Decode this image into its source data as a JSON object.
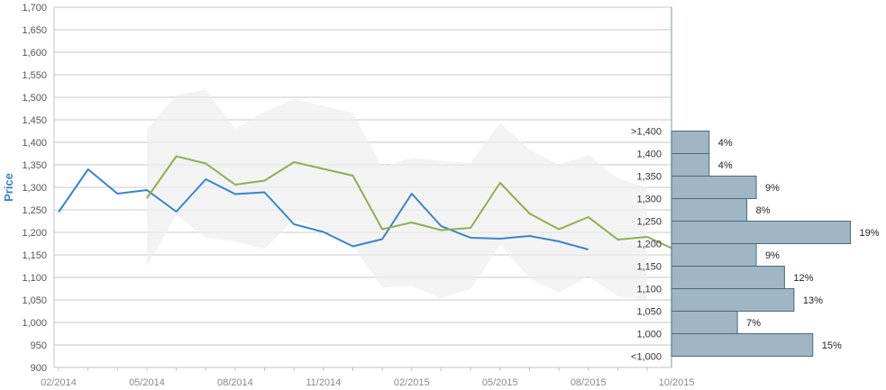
{
  "chart_data": {
    "type": "line",
    "ylabel": "Price",
    "ylim": [
      900,
      1700
    ],
    "yticks": [
      "900",
      "950",
      "1,000",
      "1,050",
      "1,100",
      "1,150",
      "1,200",
      "1,250",
      "1,300",
      "1,350",
      "1,400",
      "1,450",
      "1,500",
      "1,550",
      "1,600",
      "1,650",
      "1,700"
    ],
    "x_tick_labels": [
      "02/2014",
      "05/2014",
      "08/2014",
      "11/2014",
      "02/2015",
      "05/2015",
      "08/2015",
      "10/2015"
    ],
    "grid": true,
    "series": [
      {
        "color": "#3a84cc",
        "x": [
          "2014-02",
          "2014-03",
          "2014-04",
          "2014-05",
          "2014-06",
          "2014-07",
          "2014-08",
          "2014-09",
          "2014-10",
          "2014-11",
          "2014-12",
          "2015-01",
          "2015-02",
          "2015-03",
          "2015-04",
          "2015-05",
          "2015-06",
          "2015-07",
          "2015-08"
        ],
        "values": [
          1245,
          1340,
          1286,
          1294,
          1246,
          1318,
          1285,
          1289,
          1218,
          1201,
          1169,
          1185,
          1286,
          1214,
          1188,
          1186,
          1192,
          1180,
          1162
        ]
      },
      {
        "color": "#8db050",
        "x": [
          "2014-05",
          "2014-06",
          "2014-07",
          "2014-08",
          "2014-09",
          "2014-10",
          "2014-11",
          "2014-12",
          "2015-01",
          "2015-02",
          "2015-03",
          "2015-04",
          "2015-05",
          "2015-06",
          "2015-07",
          "2015-08",
          "2015-09",
          "2015-10",
          "2015-11"
        ],
        "values": [
          1276,
          1369,
          1353,
          1306,
          1315,
          1356,
          1341,
          1326,
          1207,
          1222,
          1205,
          1210,
          1310,
          1242,
          1207,
          1234,
          1184,
          1190,
          1160
        ]
      },
      {
        "type": "area-range",
        "color": "#eeeeee",
        "x": [
          "2014-05",
          "2014-06",
          "2014-07",
          "2014-08",
          "2014-09",
          "2014-10",
          "2014-11",
          "2014-12",
          "2015-01",
          "2015-02",
          "2015-03",
          "2015-04",
          "2015-05",
          "2015-06",
          "2015-07",
          "2015-08",
          "2015-09",
          "2015-10"
        ],
        "high": [
          1430,
          1505,
          1517,
          1430,
          1468,
          1496,
          1481,
          1465,
          1345,
          1366,
          1359,
          1354,
          1443,
          1384,
          1350,
          1372,
          1320,
          1300
        ],
        "low": [
          1125,
          1238,
          1188,
          1180,
          1163,
          1229,
          1207,
          1170,
          1078,
          1081,
          1054,
          1074,
          1173,
          1098,
          1066,
          1102,
          1058,
          1050
        ]
      }
    ],
    "distribution": {
      "color": "#9fb6c4",
      "bins": [
        {
          "label": ">1,400",
          "percent": 4,
          "text": "4%"
        },
        {
          "label": "1,400",
          "percent": 4,
          "text": "4%"
        },
        {
          "label": "1,350",
          "percent": 9,
          "text": "9%"
        },
        {
          "label": "1,300",
          "percent": 8,
          "text": "8%"
        },
        {
          "label": "1,250",
          "percent": 19,
          "text": "19%"
        },
        {
          "label": "1,200",
          "percent": 9,
          "text": "9%"
        },
        {
          "label": "1,150",
          "percent": 12,
          "text": "12%"
        },
        {
          "label": "1,100",
          "percent": 13,
          "text": "13%"
        },
        {
          "label": "1,050",
          "percent": 7,
          "text": "7%"
        },
        {
          "label": "1,000",
          "percent": 15,
          "text": "15%"
        },
        {
          "label": "<1,000",
          "percent": null,
          "text": ""
        }
      ]
    }
  }
}
